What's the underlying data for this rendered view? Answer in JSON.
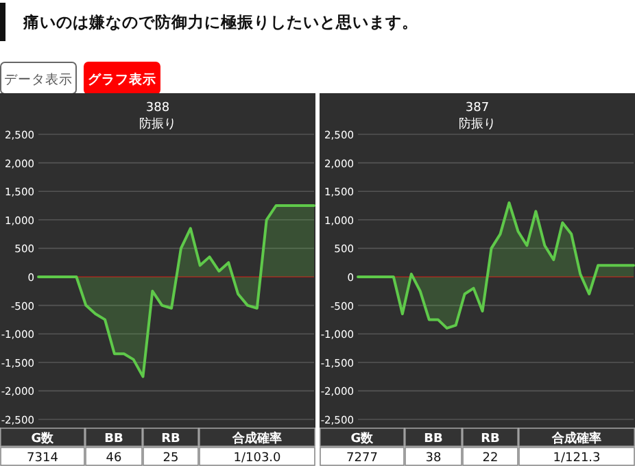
{
  "chart_data": [
    {
      "type": "other",
      "title": "痛いのは嫌なので防御力に極振りしたいと思います。",
      "annotations": [
        "データ表示",
        "グラフ表示"
      ]
    },
    {
      "type": "area",
      "title": "388",
      "subtitle": "防振り",
      "categories": [
        null,
        null,
        null,
        null,
        null,
        null,
        null,
        null,
        null,
        null,
        null,
        null,
        null,
        null,
        null,
        null,
        null,
        null,
        null,
        null,
        null,
        null,
        null,
        null,
        null,
        null,
        null,
        null,
        null,
        null
      ],
      "series": [
        {
          "color": "#5fc94a",
          "values": [
            0,
            0,
            0,
            0,
            0,
            -500,
            -650,
            -750,
            -1350,
            -1350,
            -1450,
            -1750,
            -250,
            -500,
            -550,
            500,
            850,
            200,
            350,
            100,
            250,
            -300,
            -500,
            -550,
            1000,
            1250,
            1250,
            1250,
            1250,
            1250
          ]
        }
      ],
      "ylim": [
        -2500,
        2500
      ],
      "yticks": [
        {
          "value": -2500,
          "label": "-2,500"
        },
        {
          "value": -2000,
          "label": "-2,000"
        },
        {
          "value": -1500,
          "label": "-1,500"
        },
        {
          "value": -1000,
          "label": "-1,000"
        },
        -500,
        0,
        500,
        {
          "value": 1000,
          "label": "1,000"
        },
        {
          "value": 1500,
          "label": "1,500"
        },
        {
          "value": 2000,
          "label": "2,000"
        },
        {
          "value": 2500,
          "label": "2,500"
        }
      ],
      "grid": "y",
      "tick_labels": "y",
      "ref_lines": [
        {
          "axis": "y",
          "value": 0,
          "color": "#8b2020"
        }
      ],
      "annotations": [
        "G数",
        "BB",
        "RB",
        "合成確率",
        "7314",
        "46",
        "25",
        "1/103.0"
      ]
    },
    {
      "type": "area",
      "title": "387",
      "subtitle": "防振り",
      "categories": [
        null,
        null,
        null,
        null,
        null,
        null,
        null,
        null,
        null,
        null,
        null,
        null,
        null,
        null,
        null,
        null,
        null,
        null,
        null,
        null,
        null,
        null,
        null,
        null,
        null,
        null,
        null,
        null,
        null,
        null,
        null,
        null
      ],
      "series": [
        {
          "color": "#5fc94a",
          "values": [
            0,
            0,
            0,
            0,
            0,
            -650,
            50,
            -250,
            -750,
            -750,
            -900,
            -850,
            -300,
            -200,
            -600,
            500,
            750,
            1300,
            800,
            550,
            1150,
            550,
            300,
            950,
            750,
            50,
            -300,
            200,
            200,
            200,
            200,
            200
          ]
        }
      ],
      "ylim": [
        -2500,
        2500
      ],
      "yticks": [
        {
          "value": -2500,
          "label": "-2,500"
        },
        {
          "value": -2000,
          "label": "-2,000"
        },
        {
          "value": -1500,
          "label": "-1,500"
        },
        {
          "value": -1000,
          "label": "-1,000"
        },
        -500,
        0,
        500,
        {
          "value": 1000,
          "label": "1,000"
        },
        {
          "value": 1500,
          "label": "1,500"
        },
        {
          "value": 2000,
          "label": "2,000"
        },
        {
          "value": 2500,
          "label": "2,500"
        }
      ],
      "grid": "y",
      "tick_labels": "y",
      "ref_lines": [
        {
          "axis": "y",
          "value": 0,
          "color": "#8b2020"
        }
      ],
      "annotations": [
        "G数",
        "BB",
        "RB",
        "合成確率",
        "7277",
        "38",
        "22",
        "1/121.3"
      ]
    }
  ]
}
